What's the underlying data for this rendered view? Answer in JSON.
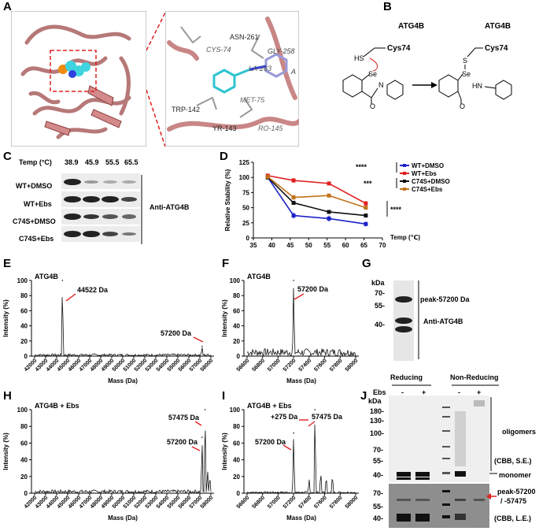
{
  "panels": {
    "A": "A",
    "B": "B",
    "C": "C",
    "D": "D",
    "E": "E",
    "F": "F",
    "G": "G",
    "H": "H",
    "I": "I",
    "J": "J"
  },
  "panel_a": {
    "residues": [
      "ASN-261",
      "GLY-258",
      "A",
      "CYS-74",
      "LA-263",
      "MET-75",
      "TRP-142",
      "YR-143",
      "RO-145"
    ]
  },
  "panel_b": {
    "enzyme_left": "ATG4B",
    "cys_left": "Cys74",
    "hs": "HS",
    "se": "Se",
    "n": "N",
    "o": "O",
    "enzyme_right": "ATG4B",
    "cys_right": "Cys74",
    "s": "S",
    "se2": "Se",
    "hn": "HN",
    "o2": "O"
  },
  "panel_c": {
    "temp_header": "Temp (°C)",
    "temps": [
      "38.9",
      "45.9",
      "55.5",
      "65.5"
    ],
    "rows": [
      "WT+DMSO",
      "WT+Ebs",
      "C74S+DMSO",
      "C74S+Ebs"
    ],
    "antibody": "Anti-ATG4B"
  },
  "panel_g": {
    "kda": "kDa",
    "markers": [
      "70-",
      "55-",
      "40-"
    ],
    "peak": "peak-57200 Da",
    "antibody": "Anti-ATG4B"
  },
  "panel_j": {
    "ebs": "Ebs",
    "signs": [
      "-",
      "+",
      "-",
      "+"
    ],
    "reducing": "Reducing",
    "nonreducing": "Non-Reducing",
    "kda": "kDa",
    "markers_top": [
      "180-",
      "130-",
      "100-",
      "70-",
      "55-",
      "40-"
    ],
    "markers_bot": [
      "70-",
      "55-",
      "40-"
    ],
    "oligomers": "oligomers",
    "cbb_se": "(CBB, S.E.)",
    "monomer": "monomer",
    "peak": "peak-57200",
    "peak2": "/ -57475",
    "cbb_le": "(CBB, L.E.)"
  },
  "chart_data": [
    {
      "id": "D",
      "type": "line",
      "xlabel": "Temp (℃)",
      "ylabel": "Relative Stability (%)",
      "xlim": [
        35,
        70
      ],
      "ylim": [
        0,
        125
      ],
      "xticks": [
        35,
        40,
        45,
        50,
        55,
        60,
        65,
        70
      ],
      "yticks": [
        0,
        25,
        50,
        75,
        100,
        125
      ],
      "x": [
        38.9,
        45.9,
        55.5,
        65.5
      ],
      "series": [
        {
          "name": "WT+DMSO",
          "color": "#1c22c8",
          "values": [
            100,
            37,
            32,
            23
          ],
          "err": [
            2,
            5,
            5,
            4
          ]
        },
        {
          "name": "WT+Ebs",
          "color": "#e02020",
          "values": [
            103,
            95,
            90,
            57
          ],
          "err": [
            2,
            4,
            3,
            4
          ]
        },
        {
          "name": "C74S+DMSO",
          "color": "#111111",
          "values": [
            100,
            58,
            43,
            37
          ],
          "err": [
            2,
            3,
            2,
            2
          ]
        },
        {
          "name": "C74S+Ebs",
          "color": "#c0721a",
          "values": [
            101,
            67,
            70,
            50
          ],
          "err": [
            2,
            4,
            3,
            3
          ]
        }
      ],
      "sig": [
        "****",
        "***",
        "****"
      ]
    },
    {
      "id": "E",
      "type": "line",
      "title": "ATG4B",
      "xlabel": "Mass (Da)",
      "ylabel": "Intensity (%)",
      "ylim": [
        0,
        100
      ],
      "xticks": [
        "42000",
        "43000",
        "44000",
        "45000",
        "46000",
        "47000",
        "48000",
        "49000",
        "50000",
        "51000",
        "52000",
        "53000",
        "54000",
        "55000",
        "56000",
        "57000",
        "58000"
      ],
      "yticks": [
        "0",
        "20",
        "40",
        "60",
        "80",
        "100"
      ],
      "peaks": [
        {
          "x": 44522,
          "y": 100
        },
        {
          "x": 57200,
          "y": 13
        }
      ],
      "annotations": [
        "44522 Da",
        "57200 Da"
      ]
    },
    {
      "id": "F",
      "type": "line",
      "title": "ATG4B",
      "xlabel": "Mass (Da)",
      "ylabel": "Intensity (%)",
      "ylim": [
        0,
        100
      ],
      "xticks": [
        "56600",
        "56800",
        "57000",
        "57200",
        "57400",
        "57600",
        "57800",
        "58000"
      ],
      "yticks": [
        "0",
        "20",
        "40",
        "60",
        "80",
        "100"
      ],
      "peaks": [
        {
          "x": 57200,
          "y": 100
        }
      ],
      "annotations": [
        "57200 Da"
      ]
    },
    {
      "id": "H",
      "type": "line",
      "title": "ATG4B + Ebs",
      "xlabel": "Mass (Da)",
      "ylabel": "Intensity (%)",
      "ylim": [
        0,
        100
      ],
      "xticks": [
        "42000",
        "43000",
        "44000",
        "45000",
        "46000",
        "47000",
        "48000",
        "49000",
        "50000",
        "51000",
        "52000",
        "53000",
        "54000",
        "55000",
        "56000",
        "57000",
        "58000"
      ],
      "yticks": [
        "0",
        "20",
        "40",
        "60",
        "80",
        "100"
      ],
      "peaks": [
        {
          "x": 57475,
          "y": 100
        },
        {
          "x": 57200,
          "y": 67
        }
      ],
      "annotations": [
        "57475 Da",
        "57200 Da"
      ]
    },
    {
      "id": "I",
      "type": "line",
      "title": "ATG4B + Ebs",
      "xlabel": "Mass (Da)",
      "ylabel": "Intensity (%)",
      "ylim": [
        0,
        100
      ],
      "xticks": [
        "56600",
        "56800",
        "57000",
        "57200",
        "57400",
        "57600",
        "57800",
        "58000"
      ],
      "yticks": [
        "0",
        "20",
        "40",
        "60",
        "80",
        "100"
      ],
      "peaks": [
        {
          "x": 57200,
          "y": 72
        },
        {
          "x": 57475,
          "y": 100
        }
      ],
      "annotations": [
        "+275 Da",
        "57475 Da",
        "57200 Da"
      ]
    }
  ]
}
